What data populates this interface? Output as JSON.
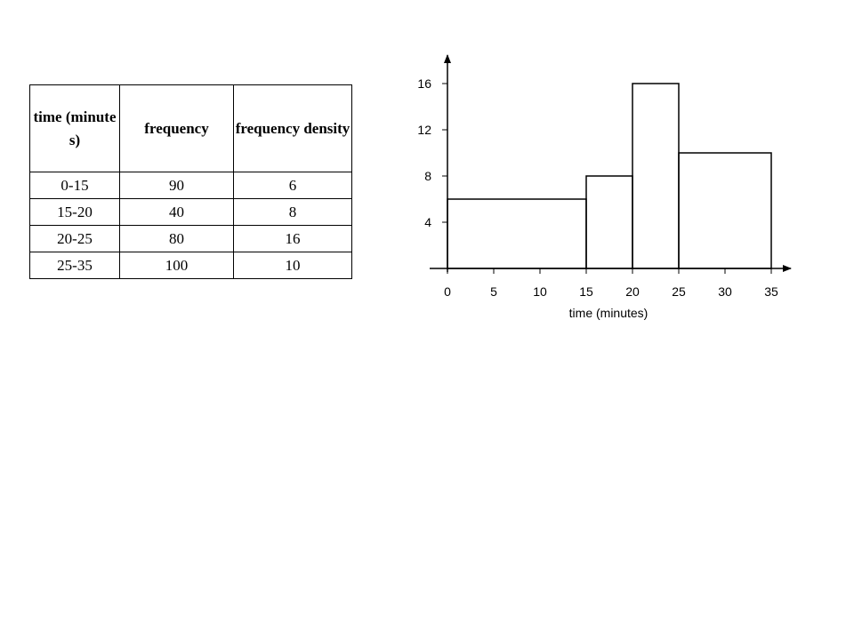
{
  "table": {
    "headers": [
      "time (minutes)",
      "frequency",
      "frequency density"
    ],
    "rows": [
      [
        "0-15",
        "90",
        "6"
      ],
      [
        "15-20",
        "40",
        "8"
      ],
      [
        "20-25",
        "80",
        "16"
      ],
      [
        "25-35",
        "100",
        "10"
      ]
    ]
  },
  "chart_data": {
    "type": "bar",
    "title": "",
    "xlabel": "time (minutes)",
    "ylabel": "",
    "bins": [
      {
        "from": 0,
        "to": 15,
        "value": 6
      },
      {
        "from": 15,
        "to": 20,
        "value": 8
      },
      {
        "from": 20,
        "to": 25,
        "value": 16
      },
      {
        "from": 25,
        "to": 35,
        "value": 10
      }
    ],
    "x_ticks": [
      0,
      5,
      10,
      15,
      20,
      25,
      30,
      35
    ],
    "y_ticks": [
      4,
      8,
      12,
      16
    ],
    "xlim": [
      0,
      35
    ],
    "ylim": [
      0,
      16
    ],
    "grid": false,
    "legend": "none"
  }
}
